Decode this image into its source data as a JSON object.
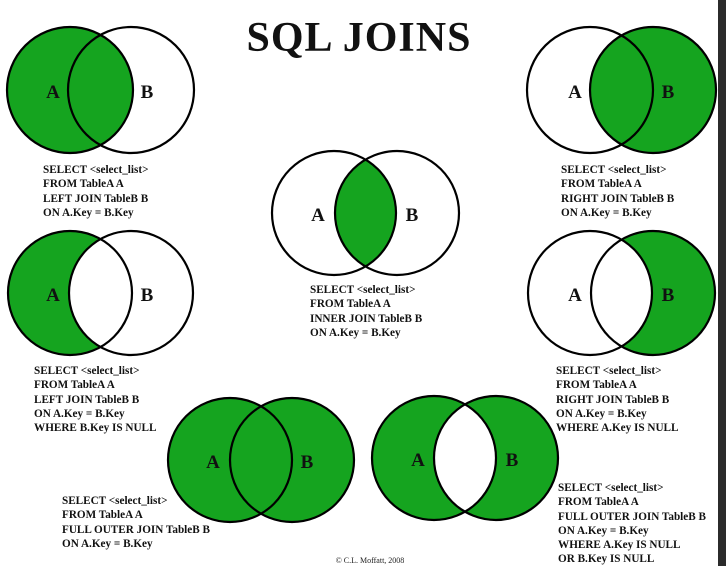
{
  "title": "SQL JOINS",
  "colors": {
    "fill": "#15a41f",
    "stroke": "#000000",
    "background": "#ffffff"
  },
  "circle_labels": {
    "a": "A",
    "b": "B"
  },
  "joins": {
    "left": {
      "name": "left-join",
      "sql": [
        "SELECT <select_list>",
        "FROM TableA A",
        "LEFT JOIN TableB B",
        "ON A.Key = B.Key"
      ]
    },
    "right": {
      "name": "right-join",
      "sql": [
        "SELECT <select_list>",
        "FROM TableA A",
        "RIGHT JOIN TableB B",
        "ON A.Key = B.Key"
      ]
    },
    "inner": {
      "name": "inner-join",
      "sql": [
        "SELECT <select_list>",
        "FROM TableA A",
        "INNER JOIN TableB B",
        "ON A.Key = B.Key"
      ]
    },
    "left_excl": {
      "name": "left-excluding-join",
      "sql": [
        "SELECT <select_list>",
        "FROM TableA A",
        "LEFT JOIN TableB B",
        "ON A.Key = B.Key",
        "WHERE B.Key IS NULL"
      ]
    },
    "right_excl": {
      "name": "right-excluding-join",
      "sql": [
        "SELECT <select_list>",
        "FROM TableA A",
        "RIGHT JOIN TableB B",
        "ON A.Key = B.Key",
        "WHERE A.Key IS NULL"
      ]
    },
    "full": {
      "name": "full-outer-join",
      "sql": [
        "SELECT <select_list>",
        "FROM TableA A",
        "FULL OUTER JOIN TableB B",
        "ON A.Key = B.Key"
      ]
    },
    "full_excl": {
      "name": "full-outer-excluding-join",
      "sql": [
        "SELECT <select_list>",
        "FROM TableA A",
        "FULL OUTER JOIN TableB B",
        "ON A.Key = B.Key",
        "WHERE A.Key IS NULL",
        "OR B.Key IS NULL"
      ]
    }
  },
  "credit": "© C.L. Moffatt, 2008"
}
